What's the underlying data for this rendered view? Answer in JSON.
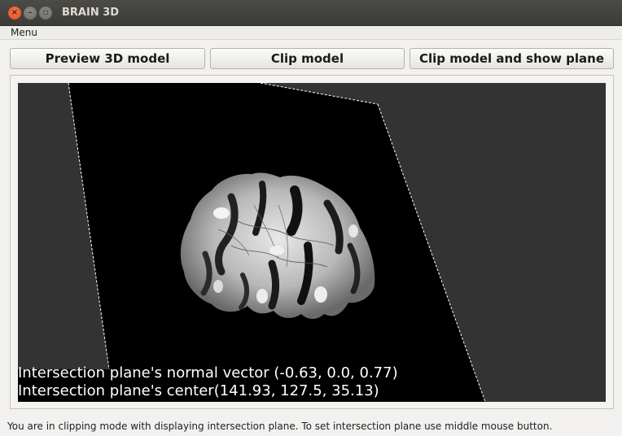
{
  "window": {
    "title": "BRAIN 3D",
    "controls": [
      "close-icon",
      "minimize-icon",
      "maximize-icon"
    ]
  },
  "menubar": {
    "items": [
      {
        "label": "Menu"
      }
    ]
  },
  "toolbar": {
    "preview_label": "Preview 3D model",
    "clip_label": "Clip model",
    "clip_show_plane_label": "Clip model and show plane"
  },
  "viewport": {
    "background_color": "#333333",
    "plane_color": "#000000",
    "overlay": {
      "normal_vector_text": "Intersection plane's normal vector (-0.63, 0.0, 0.77)",
      "center_text": "Intersection plane's center(141.93, 127.5, 35.13)"
    }
  },
  "statusbar": {
    "text": "You are in clipping mode with displaying intersection plane. To set intersection plane  use middle mouse button."
  }
}
